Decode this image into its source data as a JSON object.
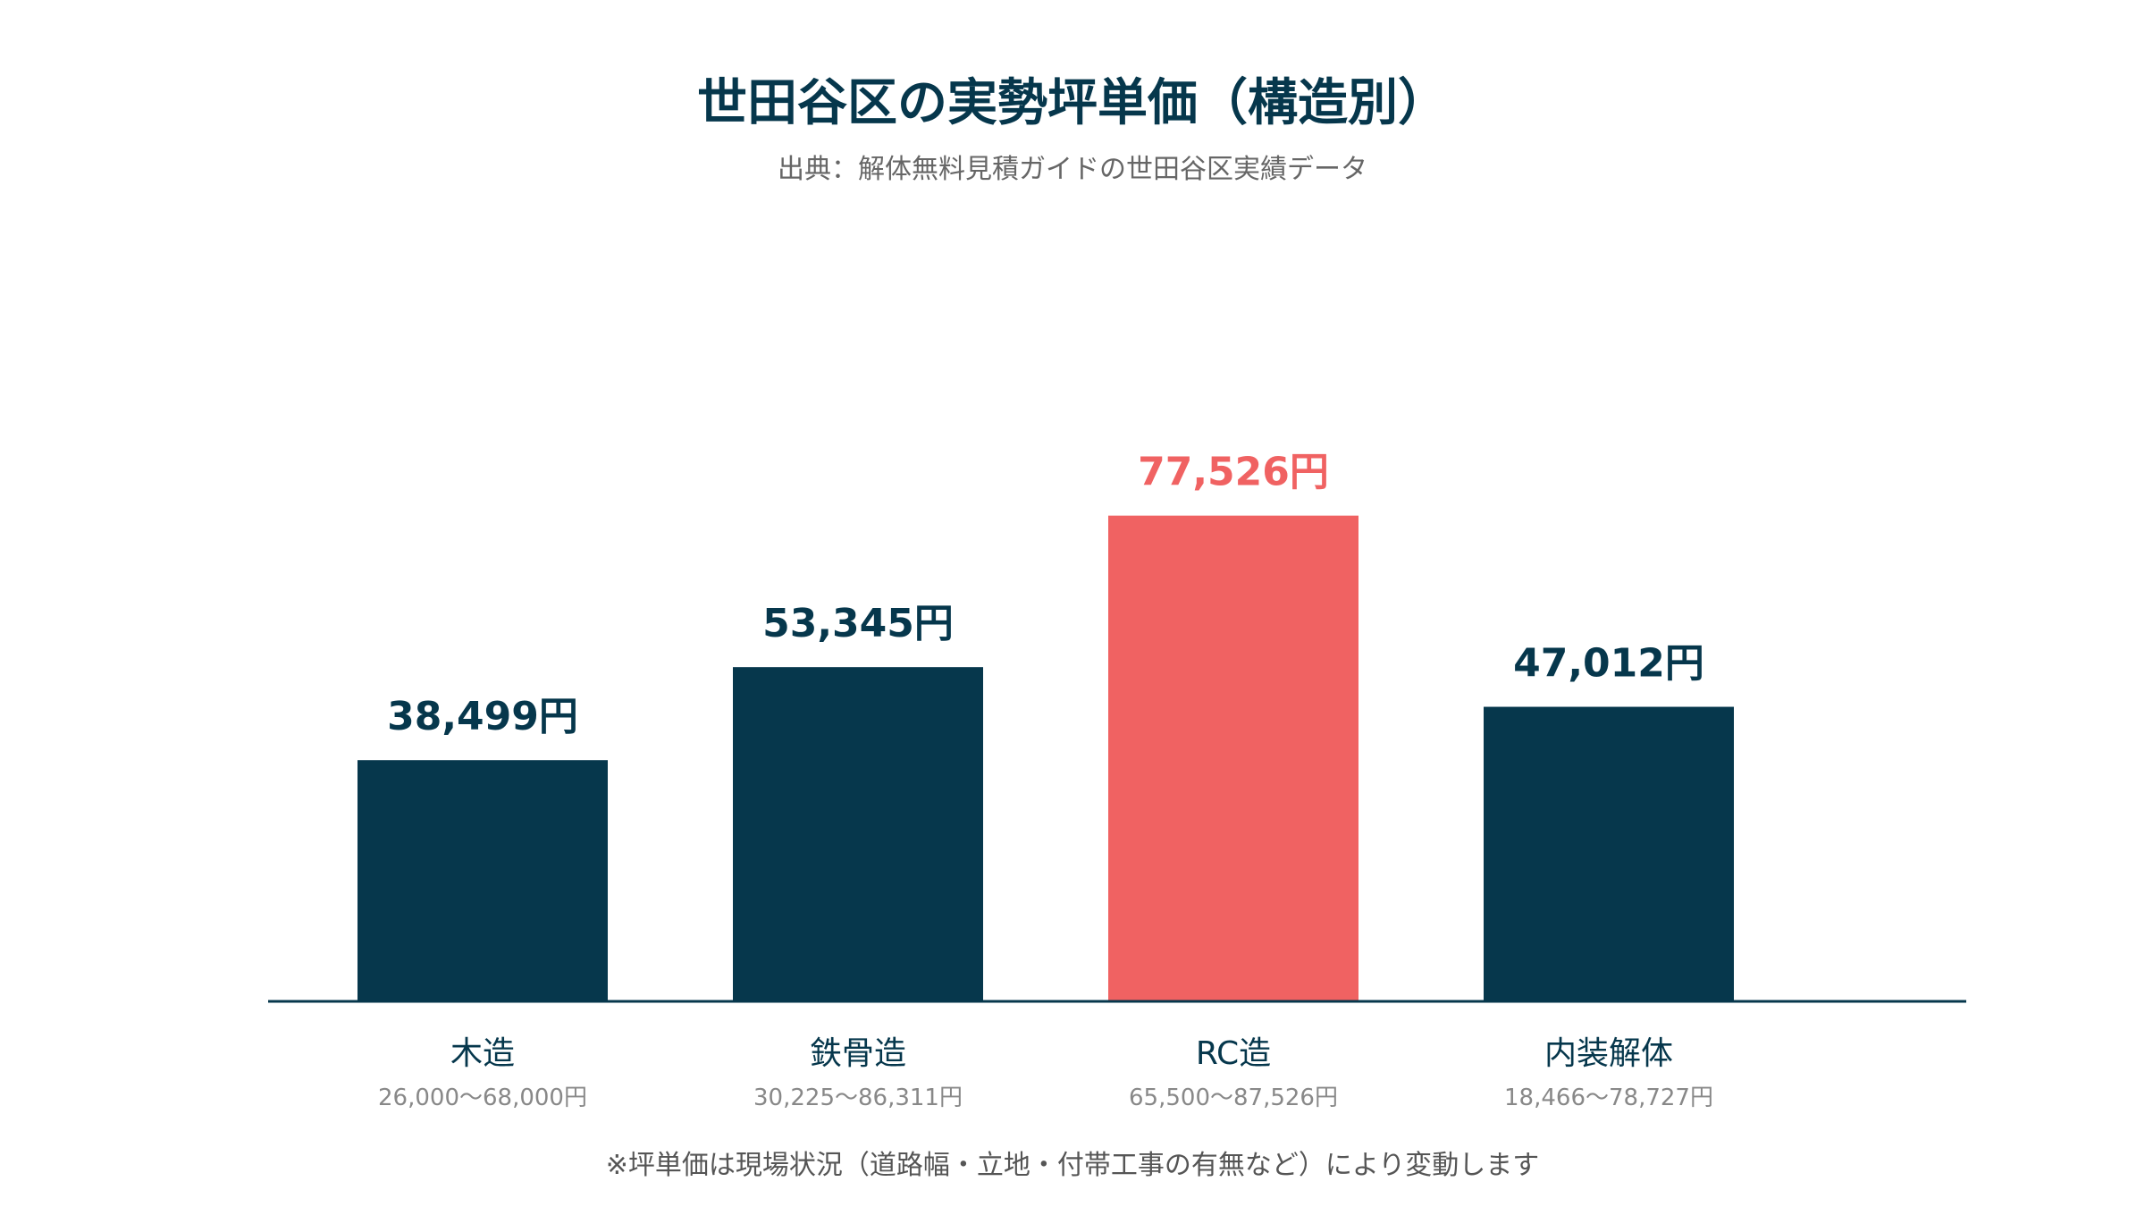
{
  "title": "世田谷区の実勢坪単価（構造別）",
  "subtitle": "出典：解体無料見積ガイドの世田谷区実績データ",
  "footnote": "※坪単価は現場状況（道路幅・立地・付帯工事の有無など）により変動します",
  "colors": {
    "primary": "#06374c",
    "highlight": "#f06262",
    "range_text": "#888888"
  },
  "chart_data": {
    "type": "bar",
    "categories": [
      "木造",
      "鉄骨造",
      "RC造",
      "内装解体"
    ],
    "values": [
      38499,
      53345,
      77526,
      47012
    ],
    "value_labels": [
      "38,499円",
      "53,345円",
      "77,526円",
      "47,012円"
    ],
    "ranges": [
      "26,000〜68,000円",
      "30,225〜86,311円",
      "65,500〜87,526円",
      "18,466〜78,727円"
    ],
    "highlight_index": 2,
    "ylim": [
      0,
      100000
    ],
    "grid": false,
    "xlabel": "",
    "ylabel": ""
  }
}
